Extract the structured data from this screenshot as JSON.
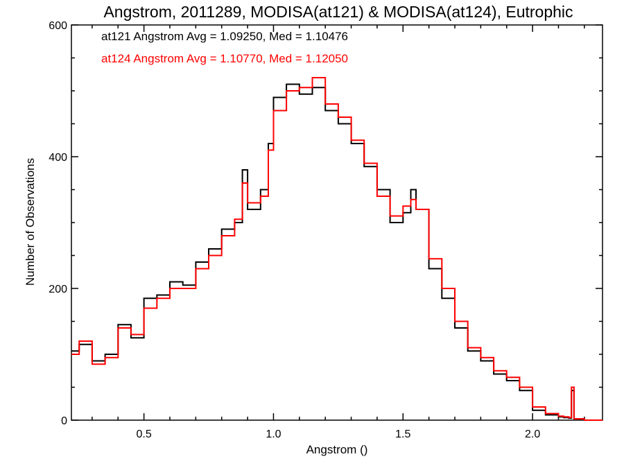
{
  "chart_data": {
    "type": "histogram",
    "title": "Angstrom, 2011289, MODISA(at121) & MODISA(at124), Eutrophic",
    "xlabel": "Angstrom ()",
    "ylabel": "Number of Observations",
    "xlim": [
      0.22,
      2.27
    ],
    "ylim": [
      0,
      600
    ],
    "xticks": [
      0.5,
      1.0,
      1.5,
      2.0
    ],
    "xtick_labels": [
      "0.5",
      "1.0",
      "1.5",
      "2.0"
    ],
    "yticks": [
      0,
      200,
      400,
      600
    ],
    "ytick_labels": [
      "0",
      "200",
      "400",
      "600"
    ],
    "annotations": [
      {
        "text": "at121 Angstrom Avg = 1.09250, Med = 1.10476",
        "color": "#000000"
      },
      {
        "text": "at124 Angstrom Avg = 1.10770, Med = 1.12050",
        "color": "#ff0000"
      }
    ],
    "series": [
      {
        "name": "at121",
        "color": "#000000",
        "x": [
          0.22,
          0.25,
          0.3,
          0.35,
          0.4,
          0.45,
          0.5,
          0.55,
          0.6,
          0.65,
          0.7,
          0.75,
          0.8,
          0.85,
          0.88,
          0.9,
          0.95,
          0.98,
          1.0,
          1.05,
          1.1,
          1.15,
          1.2,
          1.25,
          1.3,
          1.35,
          1.4,
          1.45,
          1.5,
          1.53,
          1.55,
          1.6,
          1.65,
          1.7,
          1.75,
          1.8,
          1.85,
          1.9,
          1.95,
          2.0,
          2.05,
          2.1,
          2.12,
          2.14,
          2.15,
          2.16,
          2.2,
          2.27
        ],
        "y": [
          105,
          115,
          90,
          100,
          145,
          125,
          185,
          190,
          210,
          205,
          240,
          260,
          290,
          300,
          380,
          320,
          350,
          420,
          490,
          510,
          495,
          505,
          470,
          450,
          420,
          385,
          350,
          300,
          315,
          350,
          320,
          230,
          185,
          140,
          105,
          90,
          70,
          60,
          45,
          15,
          8,
          5,
          4,
          3,
          45,
          2,
          0,
          0
        ]
      },
      {
        "name": "at124",
        "color": "#ff0000",
        "x": [
          0.22,
          0.25,
          0.3,
          0.35,
          0.4,
          0.45,
          0.5,
          0.55,
          0.6,
          0.65,
          0.7,
          0.75,
          0.8,
          0.85,
          0.88,
          0.9,
          0.95,
          0.98,
          1.0,
          1.05,
          1.1,
          1.15,
          1.2,
          1.25,
          1.3,
          1.35,
          1.4,
          1.45,
          1.5,
          1.53,
          1.55,
          1.6,
          1.65,
          1.7,
          1.75,
          1.8,
          1.85,
          1.9,
          1.95,
          2.0,
          2.05,
          2.1,
          2.12,
          2.14,
          2.15,
          2.16,
          2.2,
          2.27
        ],
        "y": [
          100,
          120,
          85,
          95,
          140,
          130,
          170,
          185,
          200,
          200,
          230,
          250,
          280,
          305,
          360,
          330,
          340,
          410,
          470,
          500,
          505,
          520,
          480,
          460,
          425,
          390,
          340,
          310,
          325,
          335,
          320,
          245,
          200,
          150,
          110,
          95,
          75,
          65,
          50,
          20,
          10,
          6,
          5,
          4,
          50,
          2,
          0,
          0
        ]
      }
    ]
  }
}
